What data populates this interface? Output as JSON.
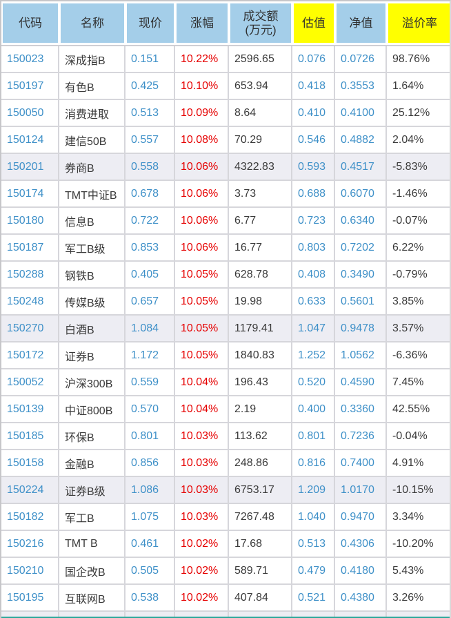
{
  "theme": {
    "header_blue": "#A4CEE9",
    "header_yellow": "#FFFF00",
    "link_blue": "#3E90C8",
    "change_red": "#E60000",
    "text_dark": "#3A3A3A",
    "shaded_row": "#EDEDF3",
    "bottom_accent_teal": "#2BA79B"
  },
  "table": {
    "columns": [
      {
        "key": "code",
        "label": "代码",
        "highlight": false
      },
      {
        "key": "name",
        "label": "名称",
        "highlight": false
      },
      {
        "key": "price",
        "label": "现价",
        "highlight": false
      },
      {
        "key": "change",
        "label": "涨幅",
        "highlight": false
      },
      {
        "key": "turnover",
        "label": "成交额",
        "label2": "(万元)",
        "highlight": false
      },
      {
        "key": "valuation",
        "label": "估值",
        "highlight": true
      },
      {
        "key": "nav",
        "label": "净值",
        "highlight": false
      },
      {
        "key": "premium",
        "label": "溢价率",
        "highlight": true
      }
    ],
    "rows": [
      {
        "code": "150023",
        "name": "深成指B",
        "price": "0.151",
        "change": "10.22%",
        "turnover": "2596.65",
        "valuation": "0.076",
        "nav": "0.0726",
        "premium": "98.76%",
        "shaded": false
      },
      {
        "code": "150197",
        "name": "有色B",
        "price": "0.425",
        "change": "10.10%",
        "turnover": "653.94",
        "valuation": "0.418",
        "nav": "0.3553",
        "premium": "1.64%",
        "shaded": false
      },
      {
        "code": "150050",
        "name": "消费进取",
        "price": "0.513",
        "change": "10.09%",
        "turnover": "8.64",
        "valuation": "0.410",
        "nav": "0.4100",
        "premium": "25.12%",
        "shaded": false
      },
      {
        "code": "150124",
        "name": "建信50B",
        "price": "0.557",
        "change": "10.08%",
        "turnover": "70.29",
        "valuation": "0.546",
        "nav": "0.4882",
        "premium": "2.04%",
        "shaded": false
      },
      {
        "code": "150201",
        "name": "券商B",
        "price": "0.558",
        "change": "10.06%",
        "turnover": "4322.83",
        "valuation": "0.593",
        "nav": "0.4517",
        "premium": "-5.83%",
        "shaded": true
      },
      {
        "code": "150174",
        "name": "TMT中证B",
        "price": "0.678",
        "change": "10.06%",
        "turnover": "3.73",
        "valuation": "0.688",
        "nav": "0.6070",
        "premium": "-1.46%",
        "shaded": false
      },
      {
        "code": "150180",
        "name": "信息B",
        "price": "0.722",
        "change": "10.06%",
        "turnover": "6.77",
        "valuation": "0.723",
        "nav": "0.6340",
        "premium": "-0.07%",
        "shaded": false
      },
      {
        "code": "150187",
        "name": "军工B级",
        "price": "0.853",
        "change": "10.06%",
        "turnover": "16.77",
        "valuation": "0.803",
        "nav": "0.7202",
        "premium": "6.22%",
        "shaded": false
      },
      {
        "code": "150288",
        "name": "钢铁B",
        "price": "0.405",
        "change": "10.05%",
        "turnover": "628.78",
        "valuation": "0.408",
        "nav": "0.3490",
        "premium": "-0.79%",
        "shaded": false
      },
      {
        "code": "150248",
        "name": "传媒B级",
        "price": "0.657",
        "change": "10.05%",
        "turnover": "19.98",
        "valuation": "0.633",
        "nav": "0.5601",
        "premium": "3.85%",
        "shaded": false
      },
      {
        "code": "150270",
        "name": "白酒B",
        "price": "1.084",
        "change": "10.05%",
        "turnover": "1179.41",
        "valuation": "1.047",
        "nav": "0.9478",
        "premium": "3.57%",
        "shaded": true
      },
      {
        "code": "150172",
        "name": "证券B",
        "price": "1.172",
        "change": "10.05%",
        "turnover": "1840.83",
        "valuation": "1.252",
        "nav": "1.0562",
        "premium": "-6.36%",
        "shaded": false
      },
      {
        "code": "150052",
        "name": "沪深300B",
        "price": "0.559",
        "change": "10.04%",
        "turnover": "196.43",
        "valuation": "0.520",
        "nav": "0.4590",
        "premium": "7.45%",
        "shaded": false
      },
      {
        "code": "150139",
        "name": "中证800B",
        "price": "0.570",
        "change": "10.04%",
        "turnover": "2.19",
        "valuation": "0.400",
        "nav": "0.3360",
        "premium": "42.55%",
        "shaded": false
      },
      {
        "code": "150185",
        "name": "环保B",
        "price": "0.801",
        "change": "10.03%",
        "turnover": "113.62",
        "valuation": "0.801",
        "nav": "0.7236",
        "premium": "-0.04%",
        "shaded": false
      },
      {
        "code": "150158",
        "name": "金融B",
        "price": "0.856",
        "change": "10.03%",
        "turnover": "248.86",
        "valuation": "0.816",
        "nav": "0.7400",
        "premium": "4.91%",
        "shaded": false
      },
      {
        "code": "150224",
        "name": "证券B级",
        "price": "1.086",
        "change": "10.03%",
        "turnover": "6753.17",
        "valuation": "1.209",
        "nav": "1.0170",
        "premium": "-10.15%",
        "shaded": true
      },
      {
        "code": "150182",
        "name": "军工B",
        "price": "1.075",
        "change": "10.03%",
        "turnover": "7267.48",
        "valuation": "1.040",
        "nav": "0.9470",
        "premium": "3.34%",
        "shaded": false
      },
      {
        "code": "150216",
        "name": "TMT B",
        "price": "0.461",
        "change": "10.02%",
        "turnover": "17.68",
        "valuation": "0.513",
        "nav": "0.4306",
        "premium": "-10.20%",
        "shaded": false
      },
      {
        "code": "150210",
        "name": "国企改B",
        "price": "0.505",
        "change": "10.02%",
        "turnover": "589.71",
        "valuation": "0.479",
        "nav": "0.4180",
        "premium": "5.43%",
        "shaded": false
      },
      {
        "code": "150195",
        "name": "互联网B",
        "price": "0.538",
        "change": "10.02%",
        "turnover": "407.84",
        "valuation": "0.521",
        "nav": "0.4380",
        "premium": "3.26%",
        "shaded": false
      }
    ]
  }
}
